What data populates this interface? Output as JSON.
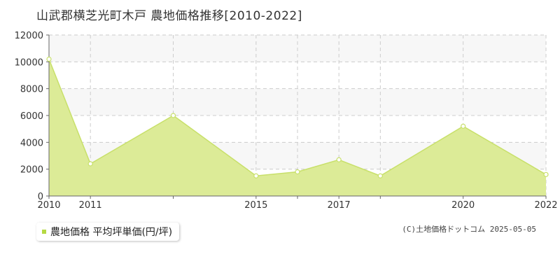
{
  "chart_data": {
    "type": "area",
    "title": "山武郡横芝光町木戸 農地価格推移[2010-2022]",
    "x": [
      2010,
      2011,
      2013,
      2015,
      2016,
      2017,
      2018,
      2020,
      2022
    ],
    "x_tick_labels": [
      "2010",
      "2011",
      "2015",
      "2017",
      "2020",
      "2022"
    ],
    "y_tick_labels": [
      "0",
      "2000",
      "4000",
      "6000",
      "8000",
      "10000",
      "12000"
    ],
    "series": [
      {
        "name": "農地価格 平均坪単価(円/坪)",
        "values": [
          10200,
          2400,
          6000,
          1500,
          1800,
          2700,
          1500,
          5200,
          1600
        ]
      }
    ],
    "xlim": [
      2010,
      2022
    ],
    "ylim": [
      0,
      12000
    ],
    "grid": true,
    "legend_position": "bottom-left",
    "colors": {
      "fill": "#dceb97",
      "line": "#c8e06a",
      "marker": "#ffffff"
    }
  },
  "legend": {
    "label": "農地価格 平均坪単価(円/坪)"
  },
  "copyright": "(C)土地価格ドットコム 2025-05-05"
}
